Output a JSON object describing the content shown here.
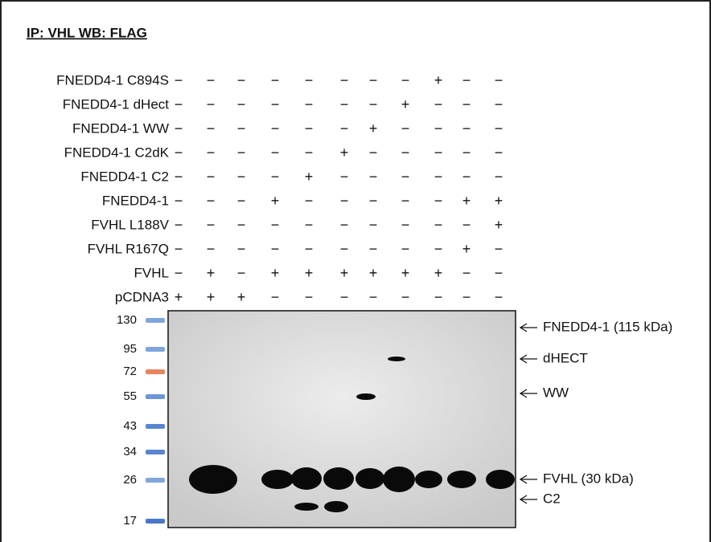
{
  "title": "IP: VHL  WB: FLAG",
  "rows": [
    {
      "label": "FNEDD4-1 C894S",
      "cells": [
        "−",
        "−",
        "−",
        "−",
        "−",
        "−",
        "−",
        "−",
        "+",
        "−",
        "−"
      ]
    },
    {
      "label": "FNEDD4-1 dHect",
      "cells": [
        "−",
        "−",
        "−",
        "−",
        "−",
        "−",
        "−",
        "+",
        "−",
        "−",
        "−"
      ]
    },
    {
      "label": "FNEDD4-1 WW",
      "cells": [
        "−",
        "−",
        "−",
        "−",
        "−",
        "−",
        "+",
        "−",
        "−",
        "−",
        "−"
      ]
    },
    {
      "label": "FNEDD4-1 C2dK",
      "cells": [
        "−",
        "−",
        "−",
        "−",
        "−",
        "+",
        "−",
        "−",
        "−",
        "−",
        "−"
      ]
    },
    {
      "label": "FNEDD4-1 C2",
      "cells": [
        "−",
        "−",
        "−",
        "−",
        "+",
        "−",
        "−",
        "−",
        "−",
        "−",
        "−"
      ]
    },
    {
      "label": "FNEDD4-1",
      "cells": [
        "−",
        "−",
        "−",
        "+",
        "−",
        "−",
        "−",
        "−",
        "−",
        "+",
        "+"
      ]
    },
    {
      "label": "FVHL L188V",
      "cells": [
        "−",
        "−",
        "−",
        "−",
        "−",
        "−",
        "−",
        "−",
        "−",
        "−",
        "+"
      ]
    },
    {
      "label": "FVHL R167Q",
      "cells": [
        "−",
        "−",
        "−",
        "−",
        "−",
        "−",
        "−",
        "−",
        "−",
        "+",
        "−"
      ]
    },
    {
      "label": "FVHL",
      "cells": [
        "−",
        "+",
        "−",
        "+",
        "+",
        "+",
        "+",
        "+",
        "+",
        "−",
        "−"
      ]
    },
    {
      "label": "pCDNA3",
      "cells": [
        "+",
        "+",
        "+",
        "−",
        "−",
        "−",
        "−",
        "−",
        "−",
        "−",
        "−"
      ]
    }
  ],
  "ladder": [
    {
      "label": 130,
      "color": "#7fa6dc"
    },
    {
      "label": 95,
      "color": "#7fa6dc"
    },
    {
      "label": 72,
      "color": "#e8845e"
    },
    {
      "label": 55,
      "color": "#6b96d8"
    },
    {
      "label": 43,
      "color": "#5a86d0"
    },
    {
      "label": 34,
      "color": "#5a86d0"
    },
    {
      "label": 26,
      "color": "#7fa6dc"
    },
    {
      "label": 17,
      "color": "#4a78c8"
    }
  ],
  "annotations": [
    {
      "label": "FNEDD4-1 (115 kDa)"
    },
    {
      "label": "dHECT"
    },
    {
      "label": "WW"
    },
    {
      "label": "FVHL (30 kDa)"
    },
    {
      "label": "C2"
    }
  ]
}
